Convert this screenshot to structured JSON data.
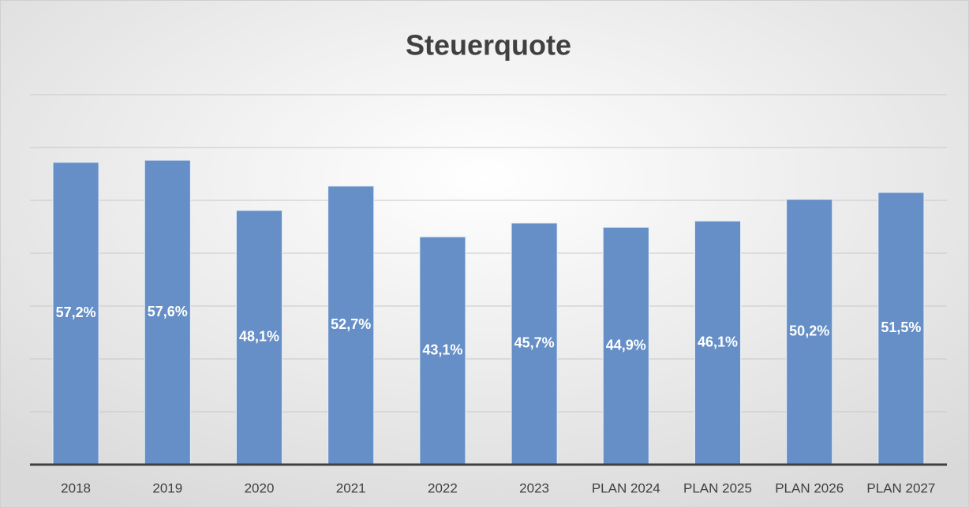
{
  "chart_data": {
    "type": "bar",
    "title": "Steuerquote",
    "categories": [
      "2018",
      "2019",
      "2020",
      "2021",
      "2022",
      "2023",
      "PLAN 2024",
      "PLAN 2025",
      "PLAN 2026",
      "PLAN 2027"
    ],
    "values": [
      57.2,
      57.6,
      48.1,
      52.7,
      43.1,
      45.7,
      44.9,
      46.1,
      50.2,
      51.5
    ],
    "value_labels": [
      "57,2%",
      "57,6%",
      "48,1%",
      "52,7%",
      "43,1%",
      "45,7%",
      "44,9%",
      "46,1%",
      "50,2%",
      "51,5%"
    ],
    "color": "#658fc6",
    "ylim": [
      0,
      70
    ],
    "yticks": [
      0,
      10,
      20,
      30,
      40,
      50,
      60,
      70
    ],
    "grid": true
  }
}
